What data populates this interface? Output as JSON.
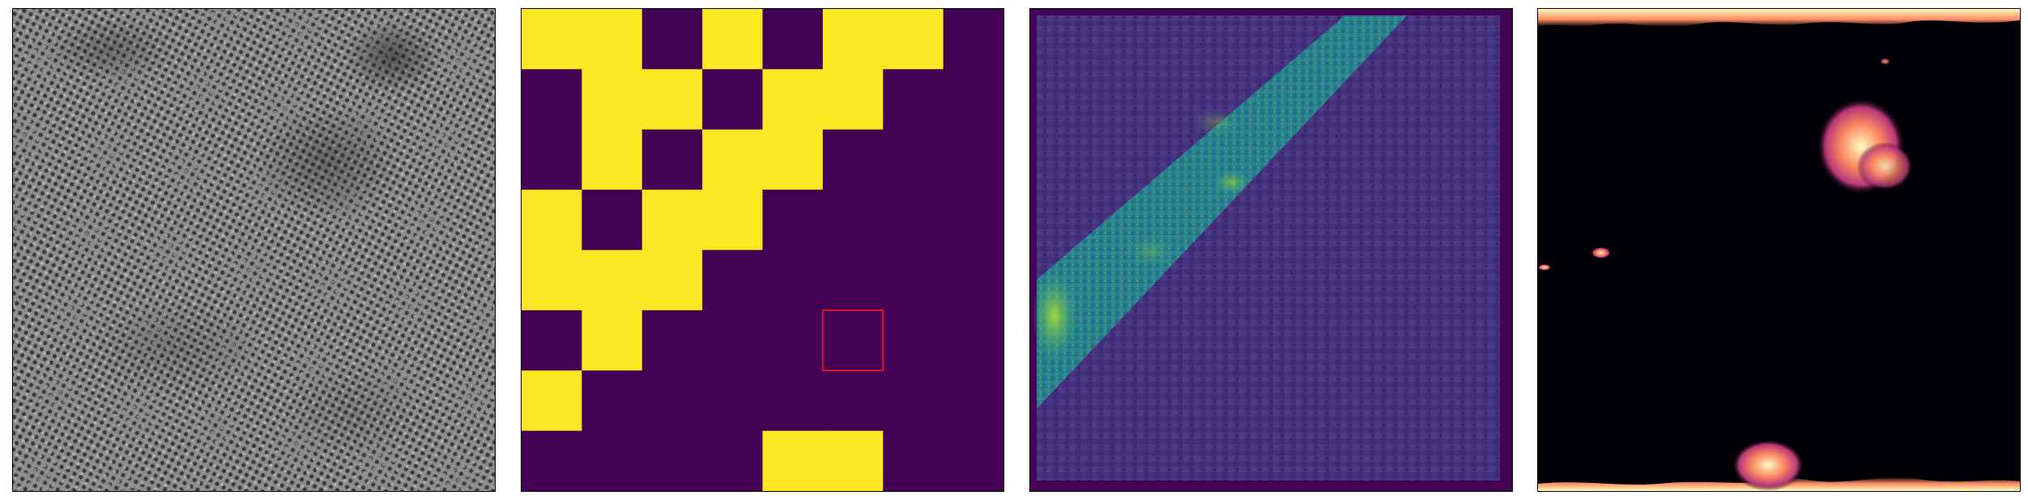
{
  "figure": {
    "panels": [
      {
        "id": "micrograph",
        "kind": "grayscale lattice image"
      },
      {
        "id": "binary_grid",
        "kind": "categorical grid",
        "grid_size": 8,
        "cells": [
          [
            1,
            1,
            0,
            1,
            0,
            1,
            1,
            0
          ],
          [
            0,
            1,
            1,
            0,
            1,
            1,
            0,
            0
          ],
          [
            0,
            1,
            0,
            1,
            1,
            0,
            0,
            0
          ],
          [
            1,
            0,
            1,
            1,
            0,
            0,
            0,
            0
          ],
          [
            1,
            1,
            1,
            0,
            0,
            0,
            0,
            0
          ],
          [
            0,
            1,
            0,
            0,
            0,
            0,
            0,
            0
          ],
          [
            1,
            0,
            0,
            0,
            0,
            0,
            0,
            0
          ],
          [
            0,
            0,
            0,
            0,
            1,
            1,
            0,
            0
          ]
        ],
        "highlight": {
          "row": 5,
          "col": 5
        },
        "colors": {
          "on": "#fde725",
          "off": "#440154",
          "highlight": "#e8141c"
        }
      },
      {
        "id": "viridis_map",
        "kind": "intensity heatmap",
        "colors": {
          "background": "#440154",
          "low": "#46327e",
          "mid": "#21908d",
          "high": "#b5de2b"
        }
      },
      {
        "id": "inferno_map",
        "kind": "thresholded heatmap",
        "colors": {
          "background": "#000004",
          "low": "#b73779",
          "mid": "#fc8961",
          "high": "#fcfdbf"
        }
      }
    ]
  }
}
